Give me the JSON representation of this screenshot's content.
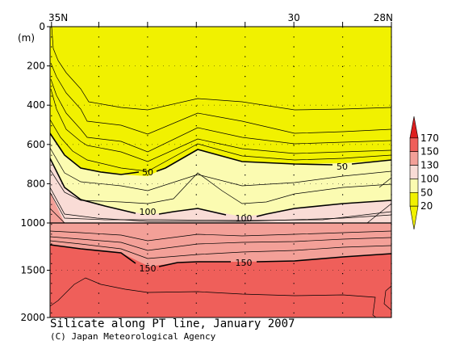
{
  "chart_data": {
    "type": "contour",
    "title": "Silicate along PT line, January 2007",
    "credit": "(C) Japan Meteorological Agency",
    "xaxis": {
      "ticks": [
        {
          "lat": 35,
          "label": "35N"
        },
        {
          "lat": 30,
          "label": "30"
        },
        {
          "lat": 28,
          "label": "28N"
        }
      ],
      "range": [
        35,
        28
      ]
    },
    "yaxis": {
      "unit_label": "(m)",
      "upper_ticks": [
        0,
        200,
        400,
        600,
        800,
        1000
      ],
      "lower_ticks": [
        1000,
        1500,
        2000
      ],
      "upper_range": [
        0,
        1000
      ],
      "lower_range": [
        1000,
        2000
      ]
    },
    "station_lats": [
      34.97,
      34.0,
      33.0,
      32.0,
      31.0,
      30.0,
      29.0,
      28.0
    ],
    "colorbar": {
      "levels": [
        "170",
        "150",
        "130",
        "100",
        "50",
        "20"
      ],
      "fills": [
        "#dd1f1f",
        "#ef5f5a",
        "#f3a098",
        "#f9dcd6",
        "#fbfbb1",
        "#f1f100",
        "#f1f100"
      ]
    },
    "contour_labels": [
      {
        "text": "50",
        "lat": 33.0,
        "depth": 715
      },
      {
        "text": "50",
        "lat": 28.9,
        "depth": 660
      },
      {
        "text": "100",
        "lat": 33.0,
        "depth": 930
      },
      {
        "text": "100",
        "lat": 31.0,
        "depth": 985
      },
      {
        "text": "150",
        "lat": 33.0,
        "depth": 1440
      },
      {
        "text": "150",
        "lat": 31.0,
        "depth": 1420
      }
    ]
  }
}
